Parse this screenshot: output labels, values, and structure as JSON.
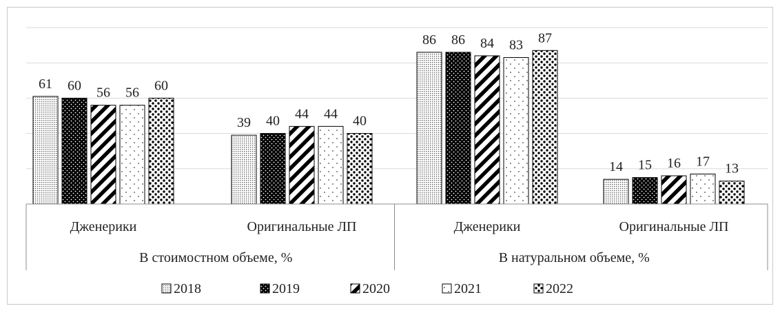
{
  "chart_data": {
    "type": "bar",
    "groups": [
      {
        "label": "В стоимостном объеме, %",
        "categories": [
          "Дженерики",
          "Оригинальные ЛП"
        ]
      },
      {
        "label": "В натуральном объеме, %",
        "categories": [
          "Дженерики",
          "Оригинальные ЛП"
        ]
      }
    ],
    "categories": [
      "Дженерики",
      "Оригинальные ЛП",
      "Дженерики",
      "Оригинальные ЛП"
    ],
    "series": [
      {
        "name": "2018",
        "pattern": "fine-dots",
        "values": [
          61,
          39,
          86,
          14
        ]
      },
      {
        "name": "2019",
        "pattern": "black-white-dots",
        "values": [
          60,
          40,
          86,
          15
        ]
      },
      {
        "name": "2020",
        "pattern": "diagonal-stripes",
        "values": [
          56,
          44,
          84,
          16
        ]
      },
      {
        "name": "2021",
        "pattern": "sparse-dots",
        "values": [
          56,
          44,
          83,
          17
        ]
      },
      {
        "name": "2022",
        "pattern": "large-dots",
        "values": [
          60,
          40,
          87,
          13
        ]
      }
    ],
    "ylim": [
      0,
      100
    ],
    "grid": true,
    "legend_position": "bottom",
    "title": "",
    "xlabel": "",
    "ylabel": ""
  }
}
